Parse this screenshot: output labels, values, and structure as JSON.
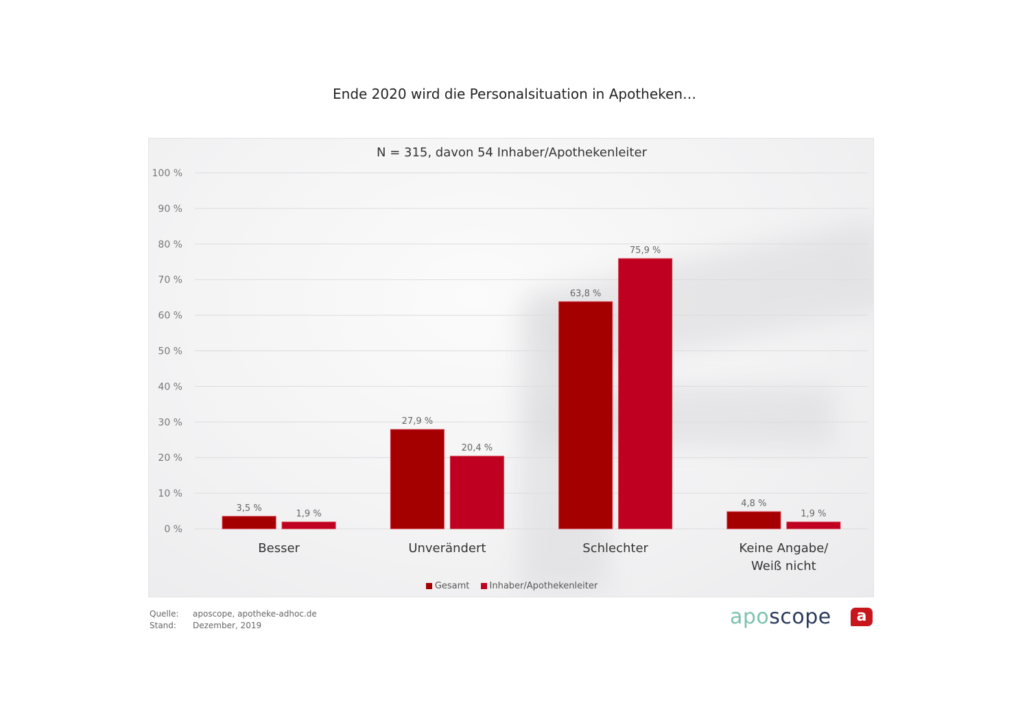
{
  "chart_data": {
    "type": "bar",
    "title": "Ende 2020 wird die Personalsituation in Apotheken…",
    "subtitle": "N = 315, davon 54 Inhaber/Apothekenleiter",
    "categories": [
      "Besser",
      "Unverändert",
      "Schlechter",
      "Keine Angabe/\nWeiß nicht"
    ],
    "category_lines": [
      [
        "Besser"
      ],
      [
        "Unverändert"
      ],
      [
        "Schlechter"
      ],
      [
        "Keine Angabe/",
        "Weiß nicht"
      ]
    ],
    "series": [
      {
        "name": "Gesamt",
        "color": "#a50000",
        "values": [
          3.5,
          27.9,
          63.8,
          4.8
        ],
        "labels": [
          "3,5 %",
          "27,9 %",
          "63,8 %",
          "4,8 %"
        ]
      },
      {
        "name": "Inhaber/Apothekenleiter",
        "color": "#c00020",
        "values": [
          1.9,
          20.4,
          75.9,
          1.9
        ],
        "labels": [
          "1,9 %",
          "20,4 %",
          "75,9 %",
          "1,9 %"
        ]
      }
    ],
    "ylim": [
      0,
      100
    ],
    "yticks": [
      0,
      10,
      20,
      30,
      40,
      50,
      60,
      70,
      80,
      90,
      100
    ],
    "ytick_labels": [
      "0 %",
      "10 %",
      "20 %",
      "30 %",
      "40 %",
      "50 %",
      "60 %",
      "70 %",
      "80 %",
      "90 %",
      "100 %"
    ],
    "xlabel": "",
    "ylabel": "",
    "grid": true,
    "legend": "bottom-center"
  },
  "footer": {
    "source_label": "Quelle:",
    "source_value": "aposcope, apotheke-adhoc.de",
    "date_label": "Stand:",
    "date_value": "Dezember,  2019"
  },
  "logo": {
    "part1": "apo",
    "part2": "scope",
    "badge": "a",
    "part1_color": "#7cc3ad",
    "part2_color": "#2b3a5c",
    "badge_color": "#c8161d"
  }
}
